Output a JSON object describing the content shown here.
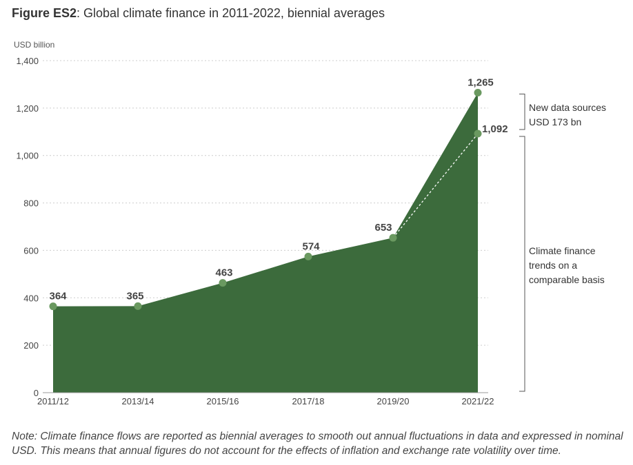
{
  "title": {
    "bold": "Figure ES2",
    "rest": ": Global climate finance in 2011-2022, biennial averages"
  },
  "note": "Note: Climate finance flows are reported as biennial averages to smooth out annual fluctuations in data and expressed in nominal USD. This means that annual figures do not account for the effects of inflation and exchange rate volatility over time.",
  "colors": {
    "area": "#3c6b3c",
    "point": "#6a9960",
    "grid": "#cccccc",
    "bracket": "#555555"
  },
  "chart_data": {
    "type": "area",
    "title": "Global climate finance in 2011-2022, biennial averages",
    "ylabel": "USD billion",
    "xlabel": "",
    "ylim": [
      0,
      1400
    ],
    "yticks": [
      0,
      200,
      400,
      600,
      800,
      1000,
      1200,
      1400
    ],
    "ytick_labels": [
      "0",
      "200",
      "400",
      "600",
      "800",
      "1,000",
      "1,200",
      "1,400"
    ],
    "categories": [
      "2011/12",
      "2013/14",
      "2015/16",
      "2017/18",
      "2019/20",
      "2021/22"
    ],
    "series": [
      {
        "values": [
          364,
          365,
          463,
          574,
          653,
          1265
        ],
        "labels": [
          "364",
          "365",
          "463",
          "574",
          "653",
          "1,265"
        ]
      },
      {
        "values": [
          null,
          null,
          null,
          null,
          653,
          1092
        ],
        "labels": [
          "",
          "",
          "",
          "",
          "",
          "1,092"
        ],
        "style": "dotted"
      }
    ],
    "grid": true,
    "annotations": [
      {
        "lines": [
          "New data sources",
          "USD 173 bn"
        ],
        "from": 1092,
        "to": 1265
      },
      {
        "lines": [
          "Climate finance",
          "trends on a",
          "comparable basis"
        ],
        "from": 0,
        "to": 1092
      }
    ]
  }
}
